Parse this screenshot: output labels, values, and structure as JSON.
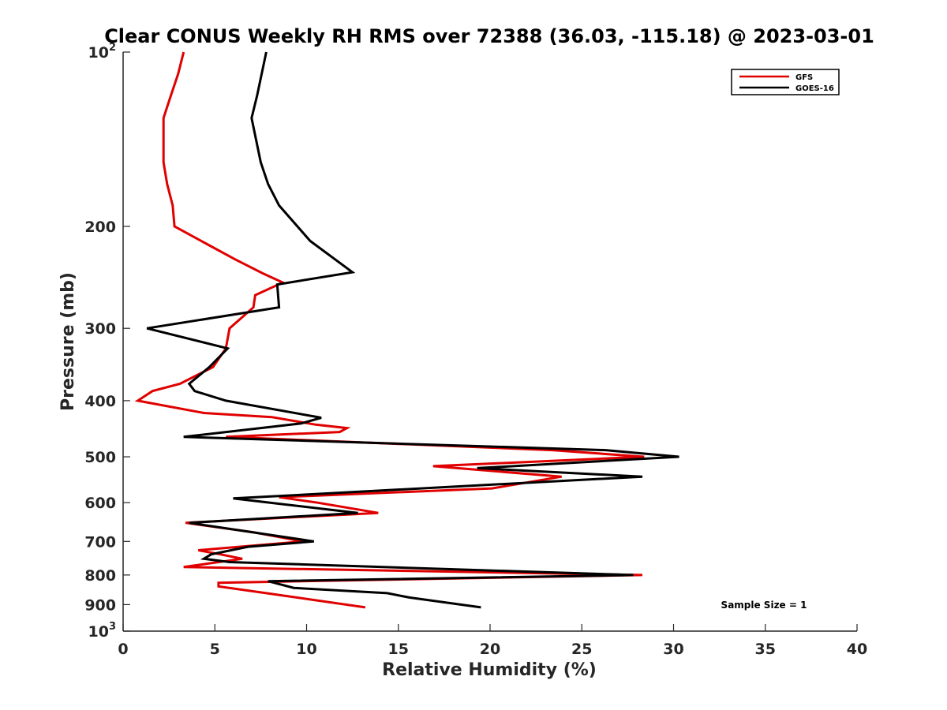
{
  "chart_data": {
    "type": "line",
    "title": "Clear CONUS Weekly RH RMS over 72388 (36.03, -115.18) @ 2023-03-01",
    "xlabel": "Relative Humidity (%)",
    "ylabel": "Pressure (mb)",
    "xlim": [
      0,
      40
    ],
    "ylim": [
      100,
      1000
    ],
    "y_scale": "log",
    "y_reversed": true,
    "grid": false,
    "legend_position": "top-right",
    "x_ticks": [
      "0",
      "5",
      "10",
      "15",
      "20",
      "25",
      "30",
      "35",
      "40"
    ],
    "y_ticks": [
      {
        "value": 100,
        "base": "10",
        "exp": "2"
      },
      {
        "value": 200,
        "label": "200"
      },
      {
        "value": 300,
        "label": "300"
      },
      {
        "value": 400,
        "label": "400"
      },
      {
        "value": 500,
        "label": "500"
      },
      {
        "value": 600,
        "label": "600"
      },
      {
        "value": 700,
        "label": "700"
      },
      {
        "value": 800,
        "label": "800"
      },
      {
        "value": 900,
        "label": "900"
      },
      {
        "value": 1000,
        "base": "10",
        "exp": "3"
      }
    ],
    "annotation": "Sample Size = 1",
    "series": [
      {
        "name": "GFS",
        "color": "#e00000",
        "points": [
          [
            3.3,
            100
          ],
          [
            3.0,
            109
          ],
          [
            2.6,
            119
          ],
          [
            2.2,
            130
          ],
          [
            2.2,
            142
          ],
          [
            2.2,
            155
          ],
          [
            2.4,
            169
          ],
          [
            2.7,
            184
          ],
          [
            2.8,
            200
          ],
          [
            4.5,
            214
          ],
          [
            6.1,
            228
          ],
          [
            7.6,
            241
          ],
          [
            8.7,
            250
          ],
          [
            7.2,
            263
          ],
          [
            7.1,
            276
          ],
          [
            5.8,
            300
          ],
          [
            5.6,
            325
          ],
          [
            4.9,
            350
          ],
          [
            3.1,
            374
          ],
          [
            1.6,
            385
          ],
          [
            0.8,
            400
          ],
          [
            4.4,
            420
          ],
          [
            8.1,
            427
          ],
          [
            10.5,
            440
          ],
          [
            12.2,
            446
          ],
          [
            11.8,
            453
          ],
          [
            5.6,
            462
          ],
          [
            23.4,
            487
          ],
          [
            28.4,
            500
          ],
          [
            16.9,
            519
          ],
          [
            23.9,
            541
          ],
          [
            20.1,
            567
          ],
          [
            8.5,
            587
          ],
          [
            10.6,
            600
          ],
          [
            13.9,
            625
          ],
          [
            3.4,
            650
          ],
          [
            7.1,
            675
          ],
          [
            9.8,
            700
          ],
          [
            4.1,
            725
          ],
          [
            5.3,
            737
          ],
          [
            6.5,
            750
          ],
          [
            3.3,
            775
          ],
          [
            28.3,
            800
          ],
          [
            5.2,
            825
          ],
          [
            5.2,
            837
          ],
          [
            7.8,
            860
          ],
          [
            13.2,
            910
          ]
        ]
      },
      {
        "name": "GOES-16",
        "color": "#000000",
        "points": [
          [
            7.8,
            100
          ],
          [
            7.3,
            119
          ],
          [
            7.0,
            130
          ],
          [
            7.5,
            155
          ],
          [
            7.9,
            169
          ],
          [
            8.5,
            184
          ],
          [
            10.2,
            212
          ],
          [
            12.5,
            240
          ],
          [
            8.4,
            252
          ],
          [
            8.5,
            276
          ],
          [
            1.3,
            300
          ],
          [
            5.7,
            325
          ],
          [
            4.7,
            350
          ],
          [
            3.6,
            374
          ],
          [
            3.9,
            385
          ],
          [
            5.6,
            400
          ],
          [
            10.8,
            428
          ],
          [
            9.7,
            438
          ],
          [
            3.3,
            462
          ],
          [
            26.3,
            487
          ],
          [
            30.3,
            500
          ],
          [
            19.3,
            523
          ],
          [
            28.3,
            541
          ],
          [
            6.0,
            590
          ],
          [
            12.8,
            625
          ],
          [
            3.6,
            650
          ],
          [
            10.4,
            700
          ],
          [
            6.8,
            715
          ],
          [
            4.8,
            737
          ],
          [
            4.4,
            750
          ],
          [
            5.8,
            760
          ],
          [
            27.8,
            800
          ],
          [
            7.9,
            820
          ],
          [
            9.3,
            842
          ],
          [
            14.4,
            860
          ],
          [
            15.6,
            875
          ],
          [
            19.5,
            910
          ]
        ]
      }
    ]
  }
}
